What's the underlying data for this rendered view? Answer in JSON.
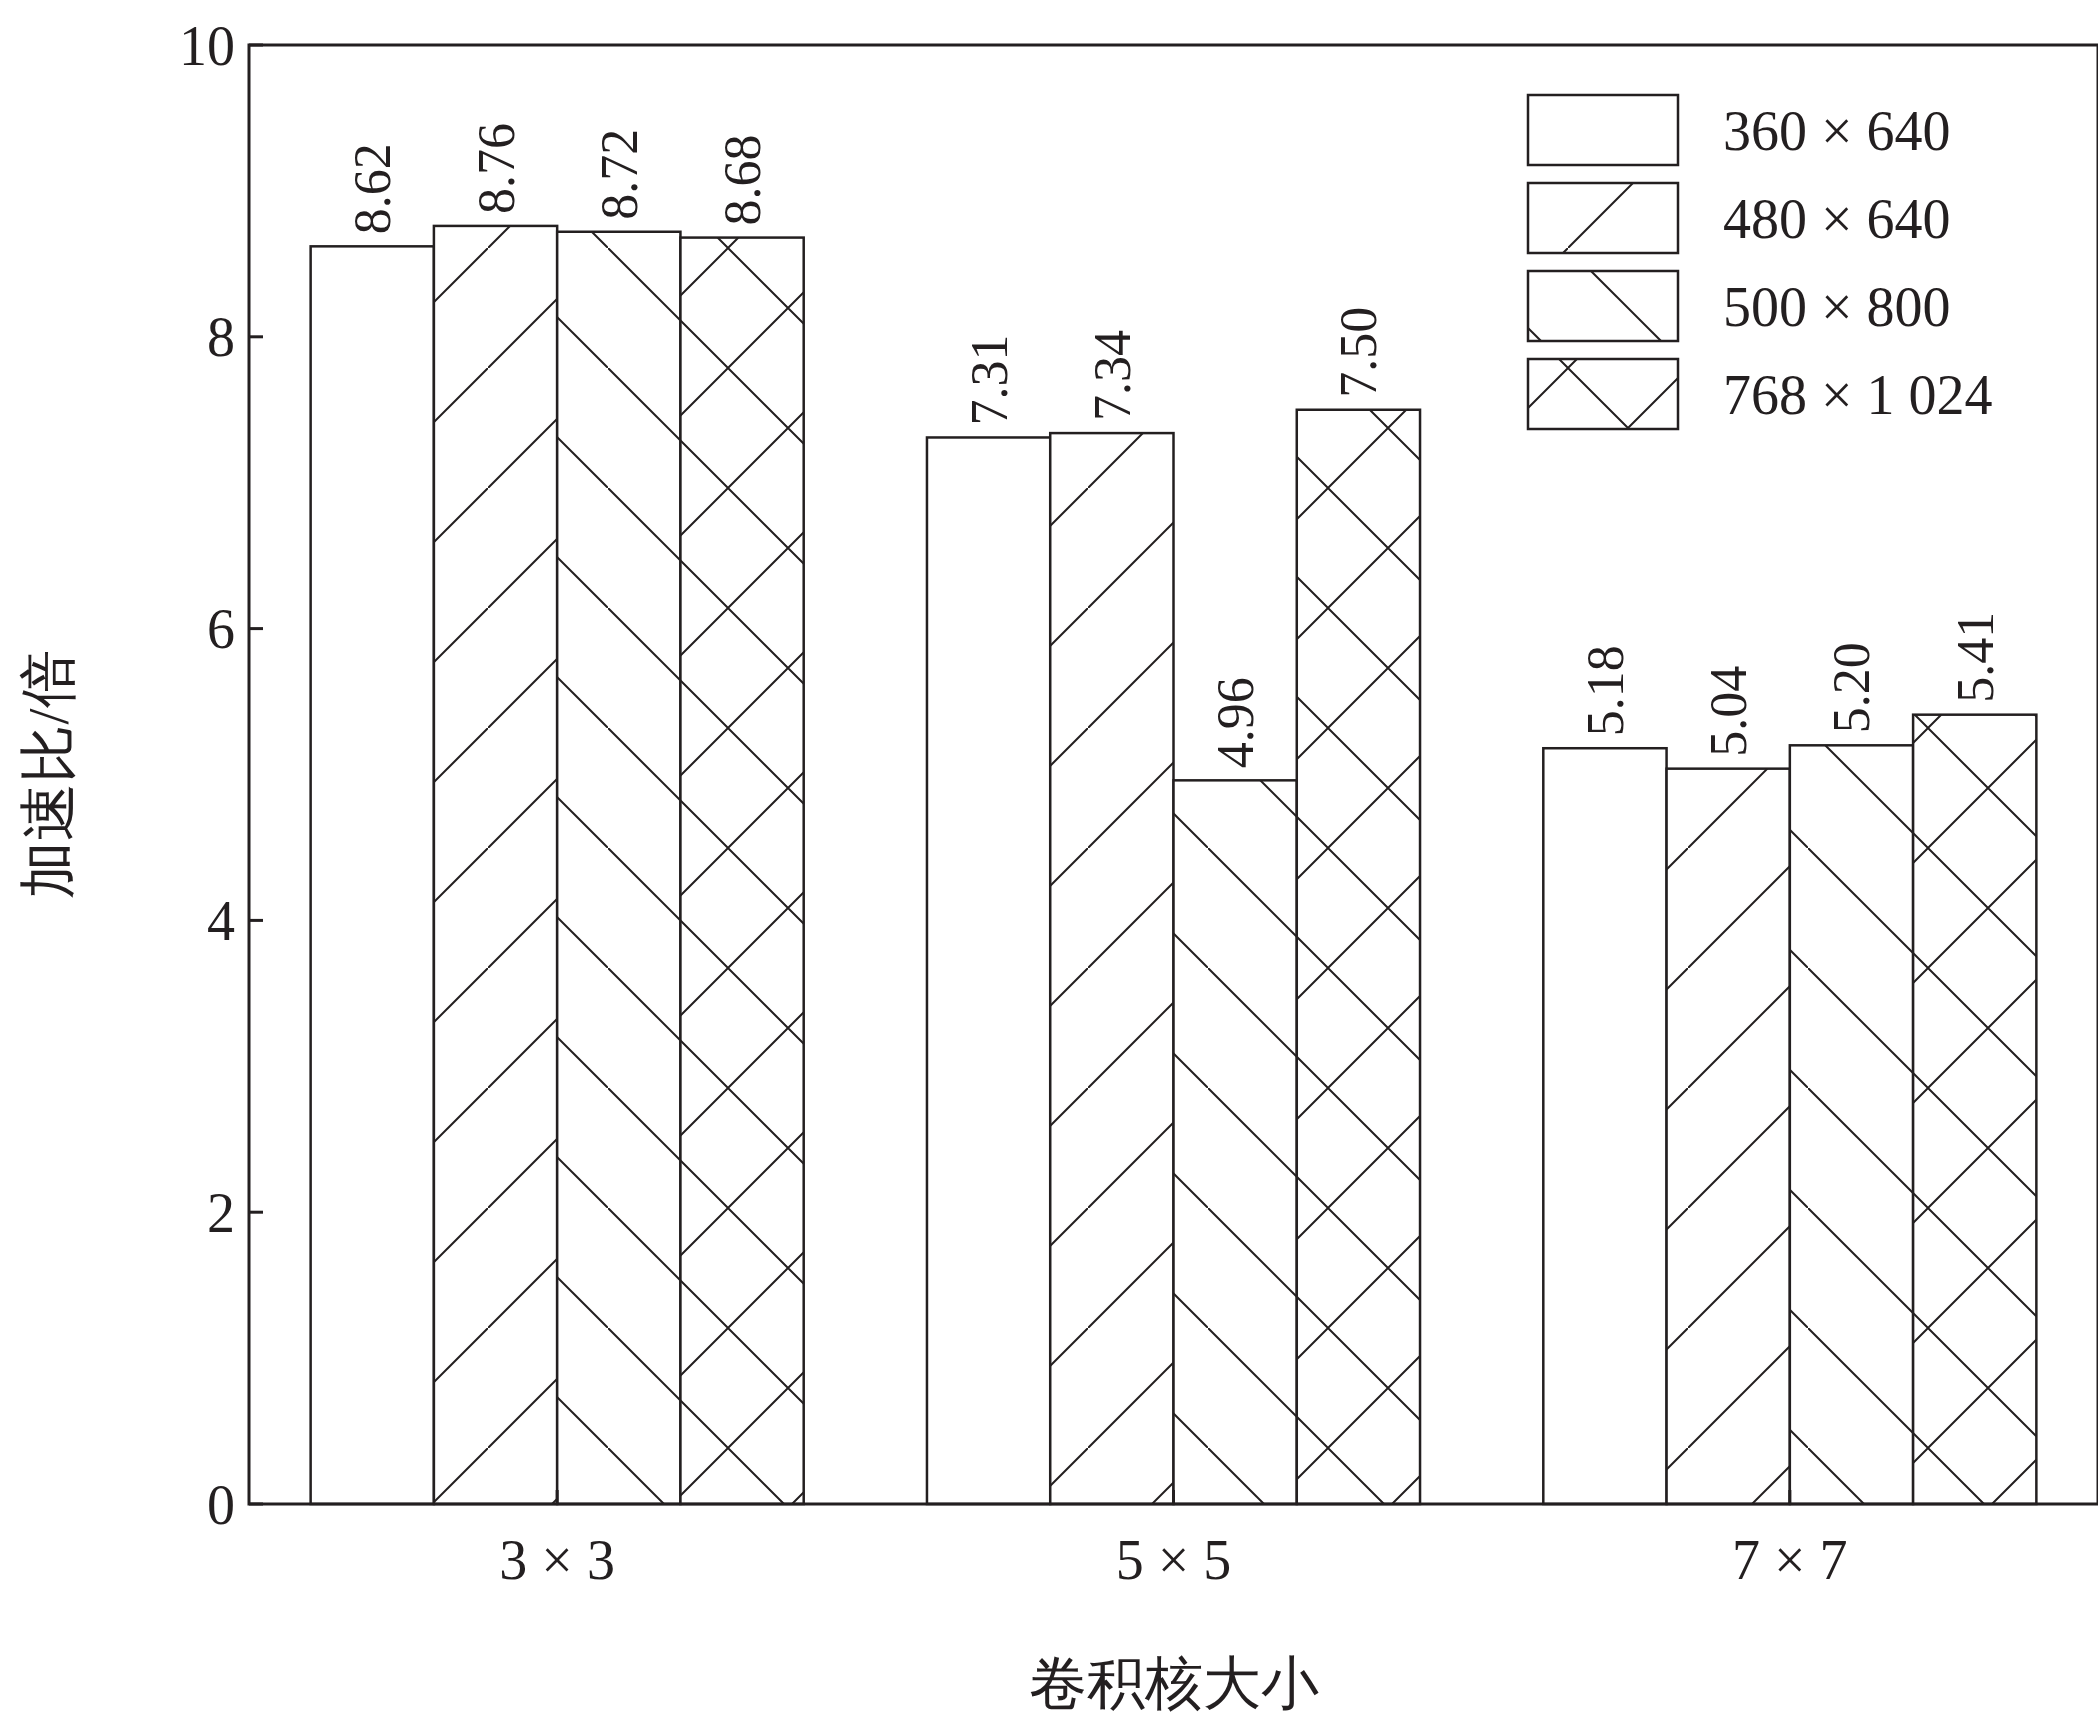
{
  "chart_data": {
    "type": "bar",
    "xlabel": "卷积核大小",
    "ylabel": "加速比/倍",
    "categories": [
      "3 × 3",
      "5 × 5",
      "7 × 7"
    ],
    "series": [
      {
        "name": "360 × 640",
        "color": "#ffffff",
        "values": [
          8.62,
          7.31,
          5.18
        ],
        "value_labels": [
          "8.62",
          "7.31",
          "5.18"
        ]
      },
      {
        "name": "480 × 640",
        "color": "#ffffff",
        "values": [
          8.76,
          7.34,
          5.04
        ],
        "value_labels": [
          "8.76",
          "7.34",
          "5.04"
        ]
      },
      {
        "name": "500 × 800",
        "color": "#ffffff",
        "values": [
          8.72,
          4.96,
          5.2
        ],
        "value_labels": [
          "8.72",
          "4.96",
          "5.20"
        ]
      },
      {
        "name": "768 × 1 024",
        "color": "#ffffff",
        "values": [
          8.68,
          7.5,
          5.41
        ],
        "value_labels": [
          "8.68",
          "7.50",
          "5.41"
        ]
      }
    ],
    "ylim": [
      0,
      10
    ],
    "yticks": [
      0,
      2,
      4,
      6,
      8,
      10
    ],
    "legend": "top right",
    "grid": false
  }
}
